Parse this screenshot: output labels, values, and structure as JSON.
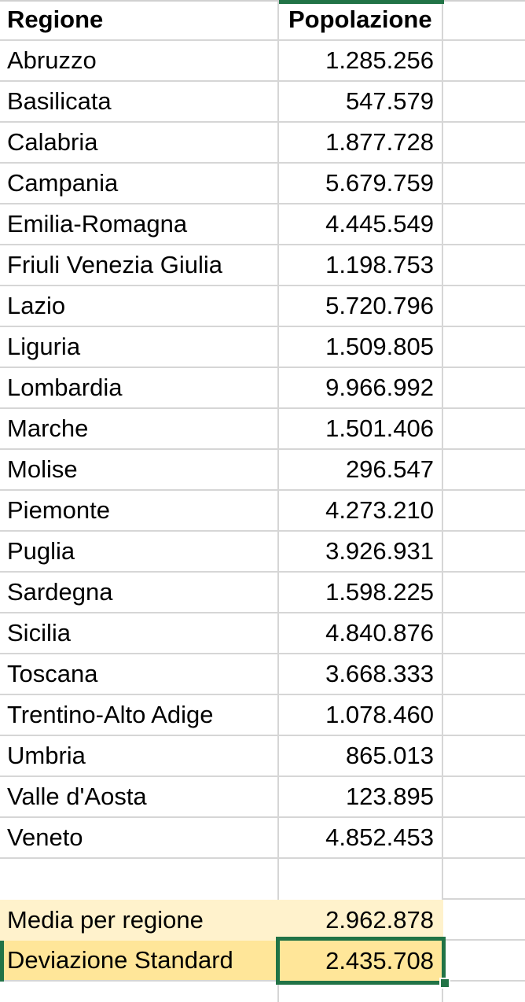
{
  "app": {
    "type": "spreadsheet-grid"
  },
  "colors": {
    "selection_green": "#217346",
    "gridline": "#d6d6d6",
    "media_row_fill": "#fff2cc",
    "deviazione_row_fill": "#ffe699",
    "text": "#000000",
    "background": "#ffffff"
  },
  "table": {
    "header": {
      "regione": "Regione",
      "popolazione": "Popolazione"
    },
    "rows": [
      {
        "region": "Abruzzo",
        "population": "1.285.256"
      },
      {
        "region": "Basilicata",
        "population": "547.579"
      },
      {
        "region": "Calabria",
        "population": "1.877.728"
      },
      {
        "region": "Campania",
        "population": "5.679.759"
      },
      {
        "region": "Emilia-Romagna",
        "population": "4.445.549"
      },
      {
        "region": "Friuli Venezia Giulia",
        "population": "1.198.753"
      },
      {
        "region": "Lazio",
        "population": "5.720.796"
      },
      {
        "region": "Liguria",
        "population": "1.509.805"
      },
      {
        "region": "Lombardia",
        "population": "9.966.992"
      },
      {
        "region": "Marche",
        "population": "1.501.406"
      },
      {
        "region": "Molise",
        "population": "296.547"
      },
      {
        "region": "Piemonte",
        "population": "4.273.210"
      },
      {
        "region": "Puglia",
        "population": "3.926.931"
      },
      {
        "region": "Sardegna",
        "population": "1.598.225"
      },
      {
        "region": "Sicilia",
        "population": "4.840.876"
      },
      {
        "region": "Toscana",
        "population": "3.668.333"
      },
      {
        "region": "Trentino-Alto Adige",
        "population": "1.078.460"
      },
      {
        "region": "Umbria",
        "population": "865.013"
      },
      {
        "region": "Valle d'Aosta",
        "population": "123.895"
      },
      {
        "region": "Veneto",
        "population": "4.852.453"
      }
    ],
    "stats": {
      "media": {
        "label": "Media per regione",
        "value": "2.962.878"
      },
      "deviazione": {
        "label": "Deviazione Standard",
        "value": "2.435.708"
      }
    }
  },
  "selection": {
    "active_cell_value": "2.435.708"
  }
}
